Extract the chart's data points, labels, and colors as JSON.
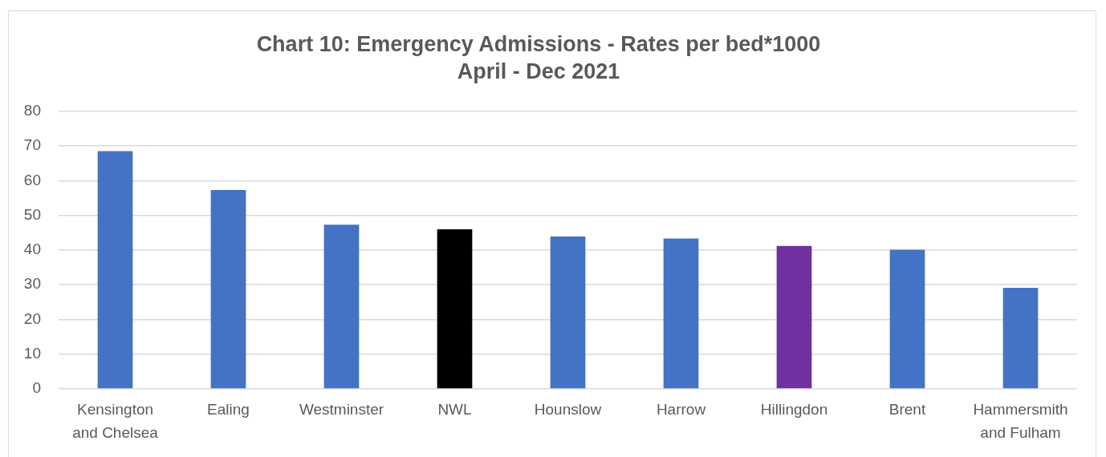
{
  "chart_data": {
    "type": "bar",
    "title": "Chart 10: Emergency Admissions - Rates per bed*1000",
    "subtitle": "April - Dec 2021",
    "categories": [
      "Kensington and Chelsea",
      "Ealing",
      "Westminster",
      "NWL",
      "Hounslow",
      "Harrow",
      "Hillingdon",
      "Brent",
      "Hammersmith and Fulham"
    ],
    "values": [
      68.5,
      57.3,
      47.3,
      46.0,
      43.9,
      43.3,
      41.2,
      40.1,
      29.1
    ],
    "colors": [
      "#4472c4",
      "#4472c4",
      "#4472c4",
      "#000000",
      "#4472c4",
      "#4472c4",
      "#7030a0",
      "#4472c4",
      "#4472c4"
    ],
    "ylim": [
      0,
      80
    ],
    "yticks": [
      0,
      10,
      20,
      30,
      40,
      50,
      60,
      70,
      80
    ],
    "grid": "y"
  }
}
